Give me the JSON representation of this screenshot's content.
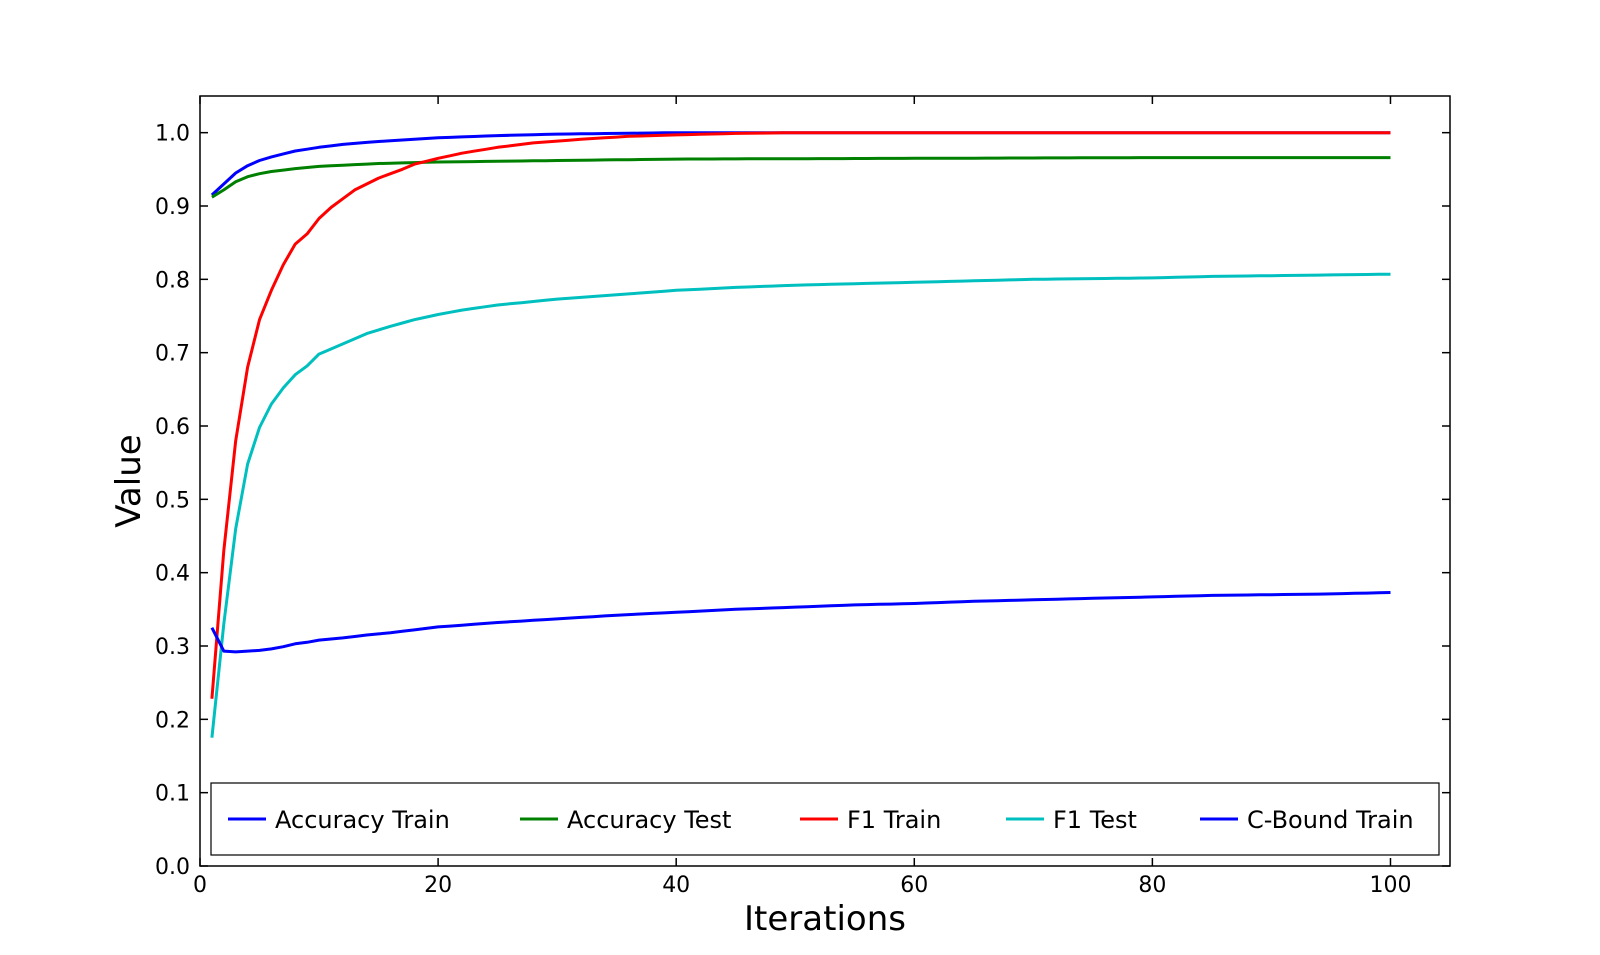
{
  "chart_data": {
    "type": "line",
    "title": "",
    "xlabel": "Iterations",
    "ylabel": "Value",
    "xlim": [
      0,
      105
    ],
    "ylim": [
      0.0,
      1.05
    ],
    "xticks": [
      "0",
      "20",
      "40",
      "60",
      "80",
      "100"
    ],
    "yticks": [
      "0.0",
      "0.1",
      "0.2",
      "0.3",
      "0.4",
      "0.5",
      "0.6",
      "0.7",
      "0.8",
      "0.9",
      "1.0"
    ],
    "grid": false,
    "legend_position": "bottom",
    "x_range": [
      1,
      100
    ],
    "series": [
      {
        "name": "Accuracy Train",
        "color": "#0000ff",
        "points": [
          [
            1,
            0.915
          ],
          [
            2,
            0.93
          ],
          [
            3,
            0.945
          ],
          [
            4,
            0.955
          ],
          [
            5,
            0.962
          ],
          [
            6,
            0.967
          ],
          [
            7,
            0.971
          ],
          [
            8,
            0.975
          ],
          [
            10,
            0.98
          ],
          [
            12,
            0.984
          ],
          [
            15,
            0.988
          ],
          [
            20,
            0.993
          ],
          [
            25,
            0.996
          ],
          [
            30,
            0.998
          ],
          [
            35,
            0.999
          ],
          [
            40,
            1.0
          ],
          [
            100,
            1.0
          ]
        ]
      },
      {
        "name": "Accuracy Test",
        "color": "#008000",
        "points": [
          [
            1,
            0.912
          ],
          [
            2,
            0.922
          ],
          [
            3,
            0.933
          ],
          [
            4,
            0.94
          ],
          [
            5,
            0.944
          ],
          [
            6,
            0.947
          ],
          [
            8,
            0.951
          ],
          [
            10,
            0.954
          ],
          [
            15,
            0.958
          ],
          [
            20,
            0.96
          ],
          [
            30,
            0.962
          ],
          [
            40,
            0.964
          ],
          [
            60,
            0.965
          ],
          [
            80,
            0.966
          ],
          [
            100,
            0.966
          ]
        ]
      },
      {
        "name": "F1 Train",
        "color": "#ff0000",
        "points": [
          [
            1,
            0.228
          ],
          [
            2,
            0.43
          ],
          [
            3,
            0.58
          ],
          [
            4,
            0.68
          ],
          [
            5,
            0.745
          ],
          [
            6,
            0.785
          ],
          [
            7,
            0.82
          ],
          [
            8,
            0.848
          ],
          [
            9,
            0.862
          ],
          [
            10,
            0.883
          ],
          [
            11,
            0.898
          ],
          [
            12,
            0.91
          ],
          [
            13,
            0.922
          ],
          [
            14,
            0.93
          ],
          [
            15,
            0.938
          ],
          [
            16,
            0.944
          ],
          [
            17,
            0.95
          ],
          [
            18,
            0.957
          ],
          [
            20,
            0.965
          ],
          [
            22,
            0.972
          ],
          [
            25,
            0.98
          ],
          [
            28,
            0.986
          ],
          [
            32,
            0.991
          ],
          [
            36,
            0.995
          ],
          [
            40,
            0.997
          ],
          [
            45,
            0.999
          ],
          [
            50,
            1.0
          ],
          [
            100,
            1.0
          ]
        ]
      },
      {
        "name": "F1 Test",
        "color": "#00bfbf",
        "points": [
          [
            1,
            0.175
          ],
          [
            2,
            0.33
          ],
          [
            3,
            0.46
          ],
          [
            4,
            0.548
          ],
          [
            5,
            0.598
          ],
          [
            6,
            0.63
          ],
          [
            7,
            0.652
          ],
          [
            8,
            0.67
          ],
          [
            9,
            0.682
          ],
          [
            10,
            0.698
          ],
          [
            12,
            0.712
          ],
          [
            14,
            0.726
          ],
          [
            16,
            0.736
          ],
          [
            18,
            0.745
          ],
          [
            20,
            0.752
          ],
          [
            22,
            0.758
          ],
          [
            25,
            0.765
          ],
          [
            30,
            0.773
          ],
          [
            35,
            0.779
          ],
          [
            40,
            0.785
          ],
          [
            45,
            0.789
          ],
          [
            50,
            0.792
          ],
          [
            55,
            0.794
          ],
          [
            60,
            0.796
          ],
          [
            65,
            0.798
          ],
          [
            70,
            0.8
          ],
          [
            75,
            0.801
          ],
          [
            80,
            0.802
          ],
          [
            85,
            0.804
          ],
          [
            90,
            0.805
          ],
          [
            95,
            0.806
          ],
          [
            100,
            0.807
          ]
        ]
      },
      {
        "name": "C-Bound Train",
        "color": "#0000ff",
        "points": [
          [
            1,
            0.325
          ],
          [
            2,
            0.293
          ],
          [
            3,
            0.292
          ],
          [
            4,
            0.293
          ],
          [
            5,
            0.294
          ],
          [
            6,
            0.296
          ],
          [
            7,
            0.299
          ],
          [
            8,
            0.303
          ],
          [
            9,
            0.305
          ],
          [
            10,
            0.308
          ],
          [
            12,
            0.311
          ],
          [
            14,
            0.315
          ],
          [
            16,
            0.318
          ],
          [
            18,
            0.322
          ],
          [
            20,
            0.326
          ],
          [
            25,
            0.332
          ],
          [
            30,
            0.337
          ],
          [
            35,
            0.342
          ],
          [
            40,
            0.346
          ],
          [
            45,
            0.35
          ],
          [
            50,
            0.353
          ],
          [
            55,
            0.356
          ],
          [
            60,
            0.358
          ],
          [
            65,
            0.361
          ],
          [
            70,
            0.363
          ],
          [
            75,
            0.365
          ],
          [
            80,
            0.367
          ],
          [
            85,
            0.369
          ],
          [
            90,
            0.37
          ],
          [
            95,
            0.371
          ],
          [
            100,
            0.373
          ]
        ]
      }
    ]
  }
}
